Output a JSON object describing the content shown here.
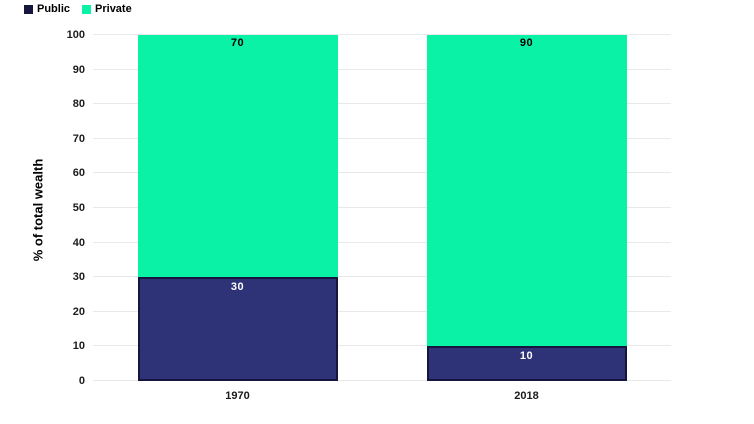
{
  "chart_data": {
    "type": "bar",
    "stacked": true,
    "categories": [
      "1970",
      "2018"
    ],
    "series": [
      {
        "name": "Public",
        "values": [
          30,
          10
        ],
        "color": "#2E3277",
        "border_color": "#15153E",
        "label_color": "#FFFFFF"
      },
      {
        "name": "Private",
        "values": [
          70,
          90
        ],
        "color": "#09F2A5",
        "border_color": null,
        "label_color": "#000000"
      }
    ],
    "title": "",
    "xlabel": "",
    "ylabel": "% of total wealth",
    "ylim": [
      0,
      100
    ],
    "ytick_step": 10,
    "grid": "horizontal",
    "legend_position": "top-left",
    "data_labels": true
  },
  "colors": {
    "background": "#FFFFFF",
    "gridline": "#E9E9E9",
    "tick_text": "#1B1B1B",
    "axis_title_text": "#000000",
    "legend_text": "#000000"
  }
}
